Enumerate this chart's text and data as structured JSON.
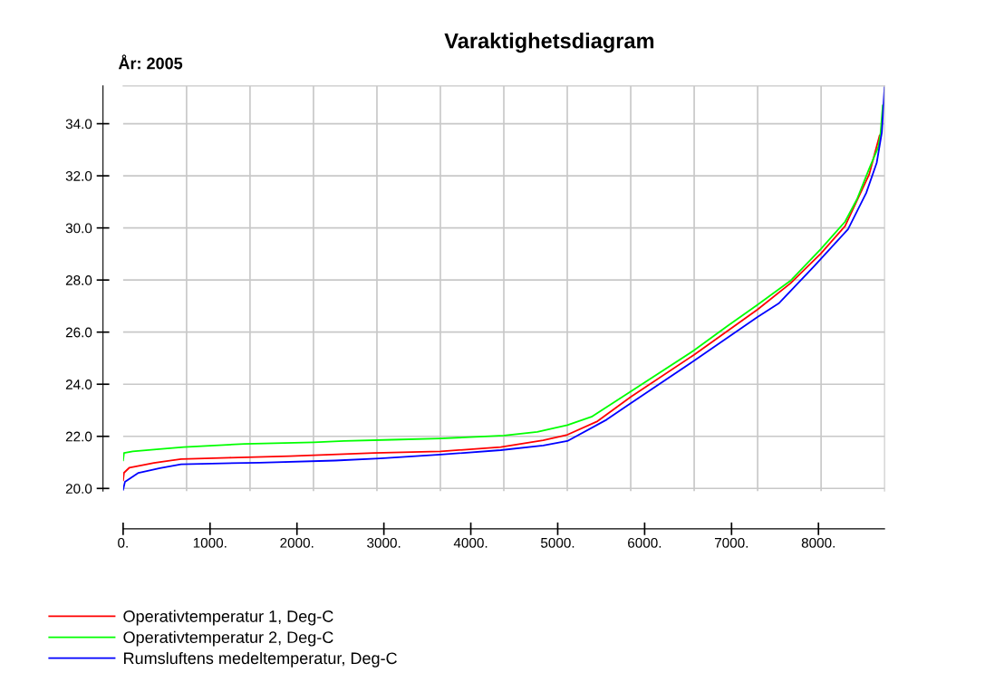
{
  "chart_data": {
    "type": "line",
    "title": "Varaktighetsdiagram",
    "annotations": [
      "År: 2005"
    ],
    "xlim": [
      0,
      8760
    ],
    "ylim": [
      19.9,
      35.45
    ],
    "xticks": [
      {
        "value": 0,
        "label": "0."
      },
      {
        "value": 1000,
        "label": "1000."
      },
      {
        "value": 2000,
        "label": "2000."
      },
      {
        "value": 3000,
        "label": "3000."
      },
      {
        "value": 4000,
        "label": "4000."
      },
      {
        "value": 5000,
        "label": "5000."
      },
      {
        "value": 6000,
        "label": "6000."
      },
      {
        "value": 7000,
        "label": "7000."
      },
      {
        "value": 8000,
        "label": "8000."
      },
      {
        "value": 730,
        "label": null
      },
      {
        "value": 1460,
        "label": null
      },
      {
        "value": 2190,
        "label": null
      },
      {
        "value": 2920,
        "label": null
      },
      {
        "value": 3650,
        "label": null
      },
      {
        "value": 4380,
        "label": null
      },
      {
        "value": 5110,
        "label": null
      },
      {
        "value": 5840,
        "label": null
      },
      {
        "value": 6570,
        "label": null
      },
      {
        "value": 7300,
        "label": null
      },
      {
        "value": 8030,
        "label": null
      }
    ],
    "yticks": [
      {
        "value": 20,
        "label": "20.0"
      },
      {
        "value": 22,
        "label": "22.0"
      },
      {
        "value": 24,
        "label": "24.0"
      },
      {
        "value": 26,
        "label": "26.0"
      },
      {
        "value": 28,
        "label": "28.0"
      },
      {
        "value": 30,
        "label": "30.0"
      },
      {
        "value": 32,
        "label": "32.0"
      },
      {
        "value": 34,
        "label": "34.0"
      }
    ],
    "grid": true,
    "legend": "bottom left",
    "marker": "none",
    "line_style": "solid",
    "series": [
      {
        "name": "Operativtemperatur 1, Deg-C",
        "color": "#ff0000",
        "x": [
          0,
          10,
          73,
          354,
          667,
          1219,
          1917,
          2885,
          3653,
          4344,
          4833,
          5111,
          5458,
          5840,
          6569,
          7299,
          7677,
          8028,
          8306,
          8583,
          8703
        ],
        "values": [
          20.31,
          20.6,
          20.8,
          20.98,
          21.13,
          21.18,
          21.24,
          21.36,
          21.42,
          21.59,
          21.85,
          22.06,
          22.58,
          23.51,
          25.13,
          26.87,
          27.87,
          29.02,
          30.07,
          32.05,
          33.55
        ]
      },
      {
        "name": "Operativtemperatur 2, Deg-C",
        "color": "#00ff00",
        "x": [
          0,
          10,
          111,
          385,
          698,
          1396,
          2194,
          2542,
          3097,
          3653,
          4382,
          4764,
          5111,
          5389,
          5840,
          6569,
          6952,
          7299,
          7677,
          8028,
          8306,
          8444,
          8583,
          8688,
          8715,
          8740
        ],
        "values": [
          21.08,
          21.36,
          21.42,
          21.5,
          21.59,
          21.71,
          21.77,
          21.82,
          21.87,
          21.92,
          22.03,
          22.17,
          22.43,
          22.75,
          23.72,
          25.3,
          26.23,
          27.05,
          27.97,
          29.19,
          30.24,
          31.11,
          32.27,
          33.1,
          33.66,
          34.7
        ]
      },
      {
        "name": "Rumsluftens medeltemperatur, Deg-C",
        "color": "#0000ff",
        "x": [
          0,
          21,
          177,
          424,
          667,
          1570,
          2438,
          2958,
          3653,
          4344,
          4833,
          5111,
          5563,
          5840,
          6569,
          7299,
          7542,
          7958,
          8340,
          8549,
          8670,
          8729,
          8760
        ],
        "values": [
          19.95,
          20.25,
          20.6,
          20.78,
          20.93,
          20.99,
          21.07,
          21.15,
          21.3,
          21.47,
          21.65,
          21.82,
          22.64,
          23.27,
          24.9,
          26.58,
          27.1,
          28.56,
          29.95,
          31.34,
          32.5,
          33.66,
          35.4
        ]
      }
    ]
  }
}
